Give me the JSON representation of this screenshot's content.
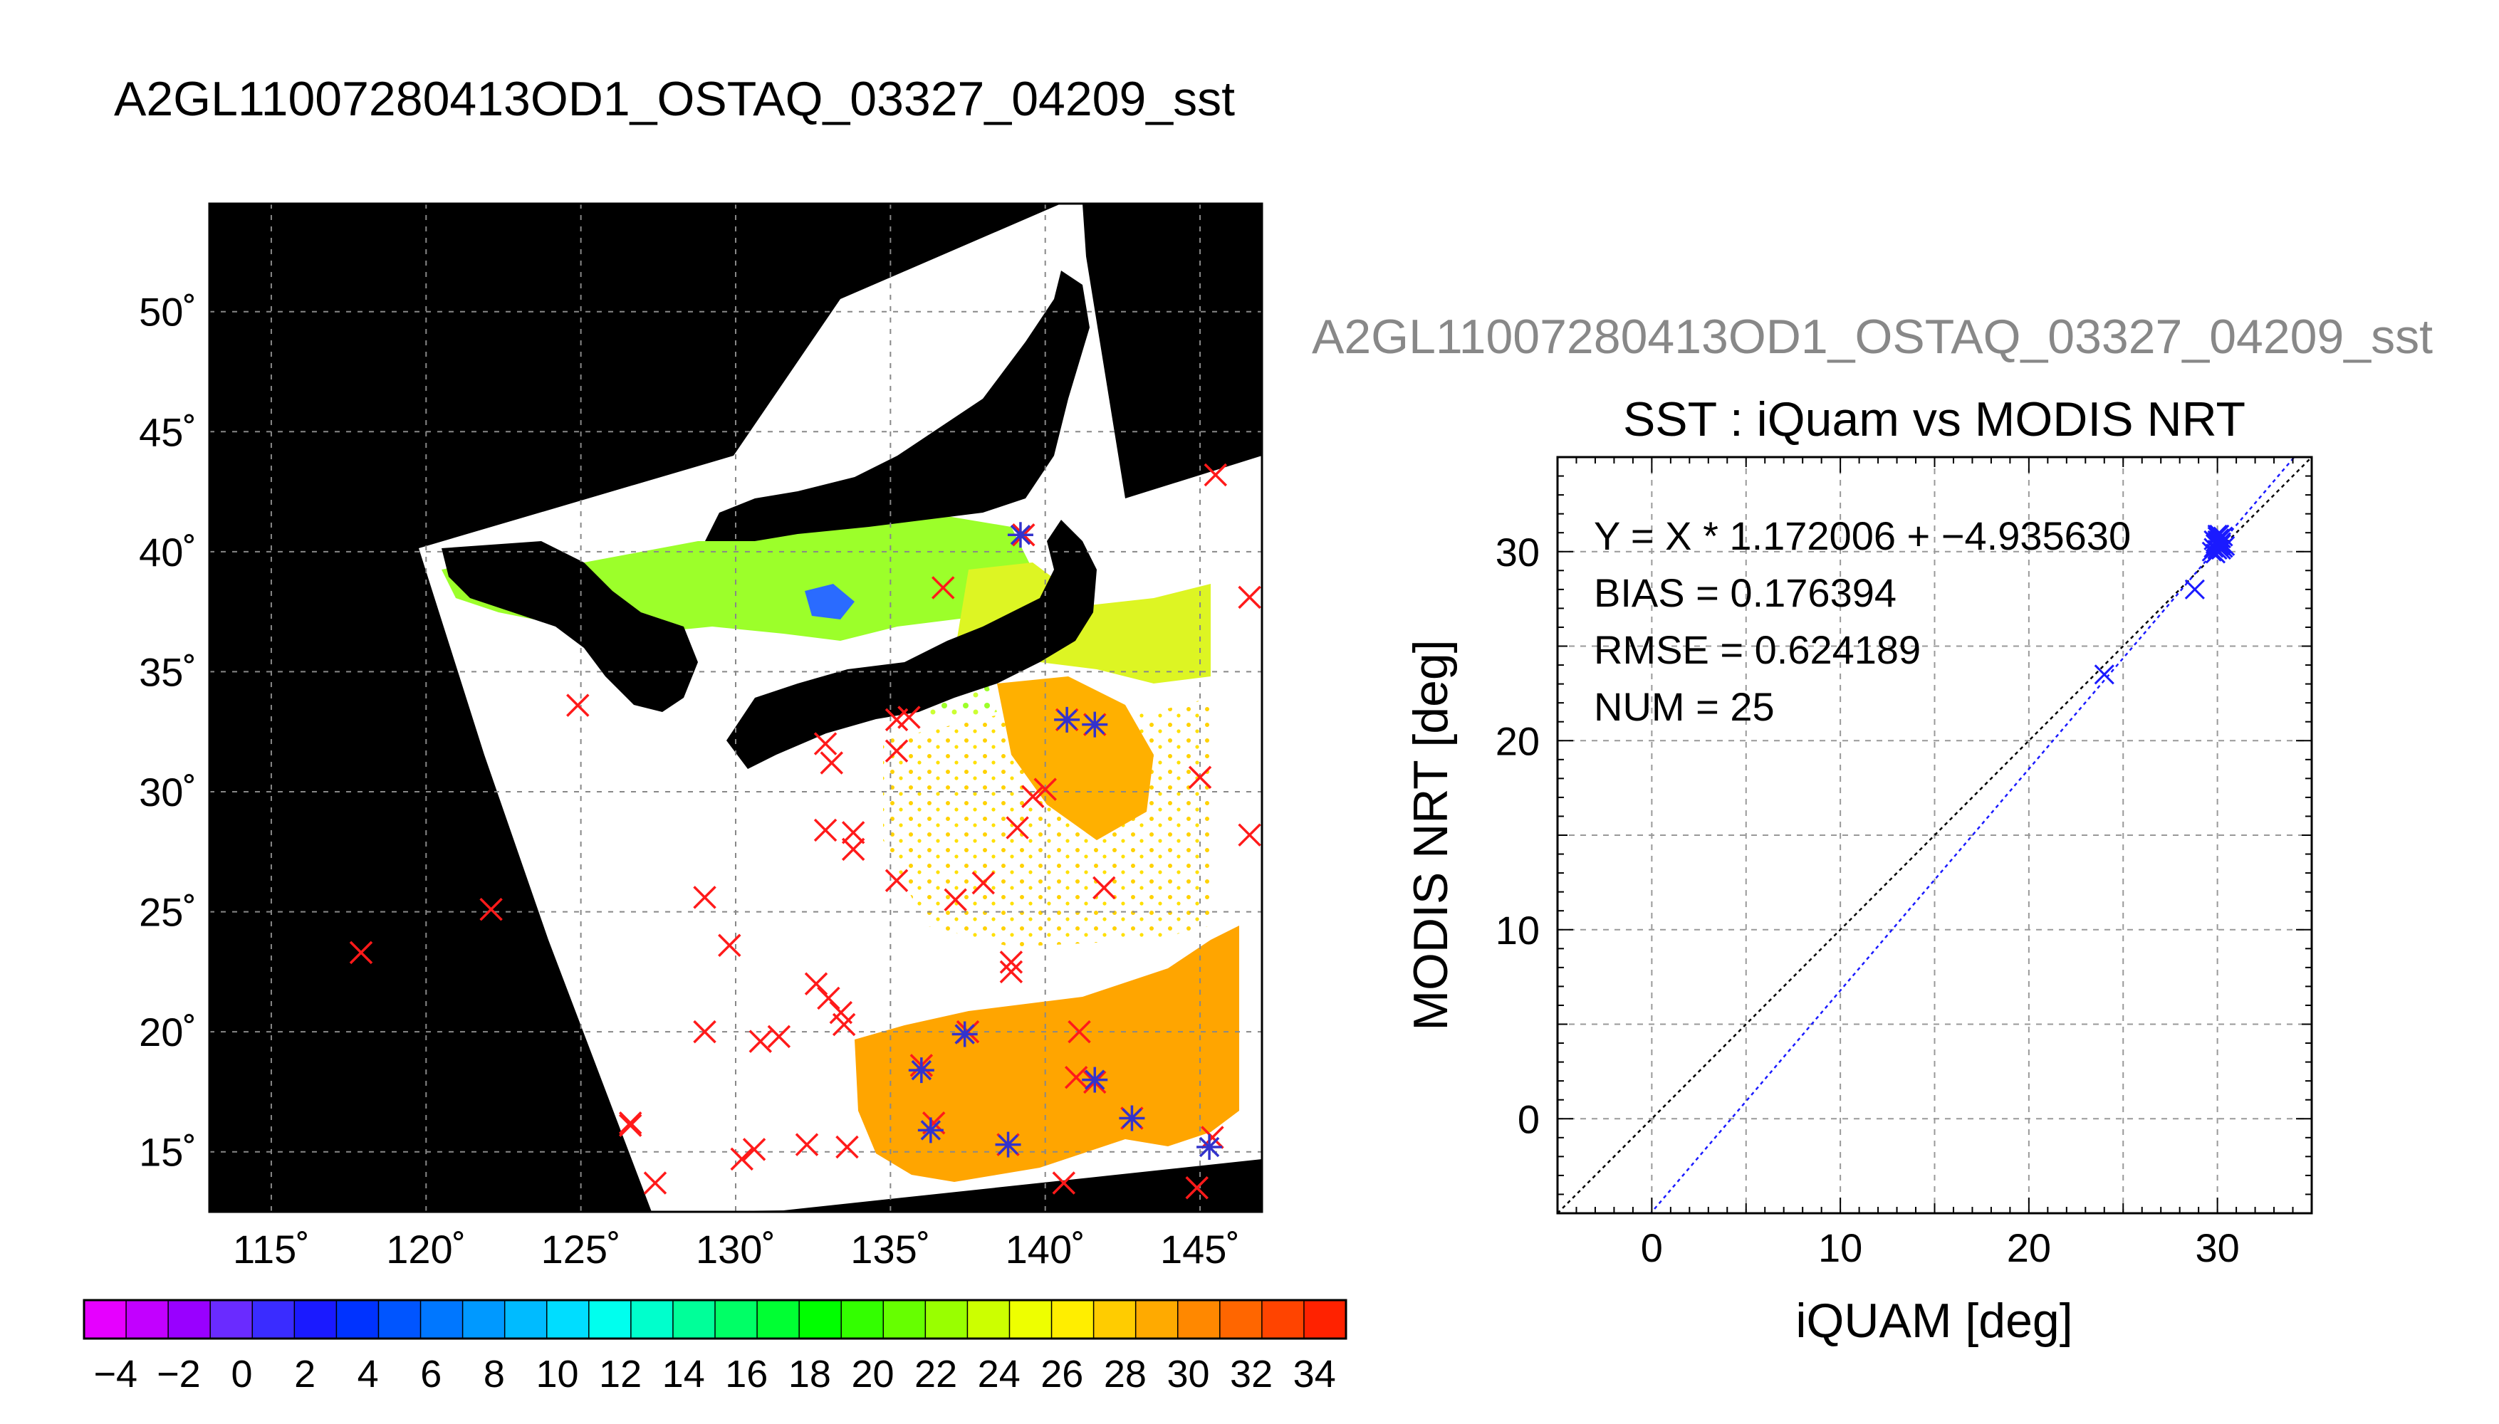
{
  "page_title": "A2GL11007280413OD1_OSTAQ_03327_04209_sst",
  "chart_data": [
    {
      "type": "map",
      "lon_range": [
        113,
        147
      ],
      "lat_range": [
        12.5,
        54.5
      ],
      "lon_ticks": [
        115,
        120,
        125,
        130,
        135,
        140,
        145
      ],
      "lat_ticks": [
        15,
        20,
        25,
        30,
        35,
        40,
        45,
        50
      ],
      "lon_tick_labels": [
        "115˚",
        "120˚",
        "125˚",
        "130˚",
        "135˚",
        "140˚",
        "145˚"
      ],
      "lat_tick_labels": [
        "15˚",
        "20˚",
        "25˚",
        "30˚",
        "35˚",
        "40˚",
        "45˚",
        "50˚"
      ],
      "grid": true,
      "colorbar": {
        "min": -5,
        "max": 35,
        "labels": [
          "−4",
          "−2",
          "0",
          "2",
          "4",
          "6",
          "8",
          "10",
          "12",
          "14",
          "16",
          "18",
          "20",
          "22",
          "24",
          "26",
          "28",
          "30",
          "32",
          "34"
        ],
        "label_values": [
          -4,
          -2,
          0,
          2,
          4,
          6,
          8,
          10,
          12,
          14,
          16,
          18,
          20,
          22,
          24,
          26,
          28,
          30,
          32,
          34
        ],
        "colors": [
          "#e600ff",
          "#c200ff",
          "#9900ff",
          "#6a2bff",
          "#3a2cff",
          "#1a1aff",
          "#0033ff",
          "#0055ff",
          "#0077ff",
          "#0099ff",
          "#00bbff",
          "#00ddff",
          "#00ffee",
          "#00ffcc",
          "#00ff99",
          "#00ff66",
          "#00ff33",
          "#00ff00",
          "#33ff00",
          "#66ff00",
          "#99ff00",
          "#ccff00",
          "#eeff00",
          "#ffee00",
          "#ffcc00",
          "#ffaa00",
          "#ff8800",
          "#ff6600",
          "#ff4400",
          "#ff2200"
        ]
      },
      "red_markers": [
        [
          117.9,
          23.3
        ],
        [
          122.1,
          25.1
        ],
        [
          124.9,
          33.6
        ],
        [
          126.6,
          16.2
        ],
        [
          126.6,
          16.1
        ],
        [
          127.4,
          13.7
        ],
        [
          129,
          25.6
        ],
        [
          129,
          20
        ],
        [
          129.8,
          23.6
        ],
        [
          130.2,
          14.7
        ],
        [
          130.6,
          15.1
        ],
        [
          130.8,
          19.6
        ],
        [
          131.4,
          19.8
        ],
        [
          132.3,
          15.3
        ],
        [
          132.6,
          22
        ],
        [
          132.9,
          32
        ],
        [
          133,
          21.4
        ],
        [
          133.1,
          31.2
        ],
        [
          133.6,
          15.2
        ],
        [
          132.9,
          28.4
        ],
        [
          133.8,
          27.6
        ],
        [
          133.4,
          20.8
        ],
        [
          133.5,
          20.3
        ],
        [
          133.8,
          28.3
        ],
        [
          135.2,
          33
        ],
        [
          135.2,
          31.7
        ],
        [
          135.2,
          26.3
        ],
        [
          135.6,
          33.1
        ],
        [
          136,
          18.6
        ],
        [
          136.4,
          16.2
        ],
        [
          136.7,
          38.5
        ],
        [
          137.1,
          25.5
        ],
        [
          137.5,
          20
        ],
        [
          138,
          26.2
        ],
        [
          138.9,
          22.9
        ],
        [
          138.9,
          22.5
        ],
        [
          138.8,
          15.3
        ],
        [
          139.1,
          28.5
        ],
        [
          139.6,
          29.8
        ],
        [
          140,
          30.1
        ],
        [
          140.6,
          13.7
        ],
        [
          141.1,
          20
        ],
        [
          141,
          18.1
        ],
        [
          141.6,
          17.9
        ],
        [
          141.9,
          26
        ],
        [
          142.8,
          16.4
        ],
        [
          144.9,
          13.5
        ],
        [
          145,
          30.6
        ],
        [
          145.4,
          15.6
        ],
        [
          145.5,
          43.2
        ],
        [
          146.6,
          38.1
        ],
        [
          146.6,
          28.2
        ],
        [
          139.3,
          40.7
        ],
        [
          140.7,
          33
        ],
        [
          141.6,
          32.8
        ]
      ],
      "blue_markers": [
        [
          136,
          18.4
        ],
        [
          136.3,
          15.9
        ],
        [
          137.4,
          19.9
        ],
        [
          138.8,
          15.3
        ],
        [
          139.2,
          40.7
        ],
        [
          140.7,
          33
        ],
        [
          141.6,
          32.8
        ],
        [
          141.6,
          18
        ],
        [
          142.8,
          16.4
        ],
        [
          145.3,
          15.2
        ]
      ]
    },
    {
      "type": "scatter",
      "suptitle": "A2GL11007280413OD1_OSTAQ_03327_04209_sst",
      "title": "SST : iQuam vs MODIS NRT",
      "xlabel": "iQUAM [deg]",
      "ylabel": "MODIS NRT [deg]",
      "xlim": [
        -5,
        35
      ],
      "ylim": [
        -5,
        35
      ],
      "x_ticks": [
        0,
        10,
        20,
        30
      ],
      "y_ticks": [
        0,
        10,
        20,
        30
      ],
      "grid_step": 5,
      "grid": true,
      "annotations": [
        "Y = X * 1.172006 + −4.935630",
        "BIAS = 0.176394",
        "RMSE = 0.624189",
        "NUM = 25"
      ],
      "fit": {
        "slope": 1.172006,
        "intercept": -4.93563
      },
      "points": {
        "x": [
          24,
          28.8,
          29.7,
          29.8,
          29.9,
          30,
          30,
          30.1,
          30.1,
          30.2,
          30.2,
          30.3,
          30.3,
          30,
          30,
          30.1,
          29.8,
          29.9,
          30.2,
          30.4,
          30,
          30.1,
          30,
          29.9,
          30.2
        ],
        "y": [
          23.5,
          28,
          30,
          30.2,
          30.4,
          30.6,
          30.9,
          30.3,
          30.7,
          30.1,
          30.5,
          30.2,
          30.8,
          30.3,
          30.5,
          30.9,
          30.6,
          29.9,
          30.4,
          30.3,
          30.1,
          30.6,
          30.8,
          30.5,
          30.7
        ]
      }
    }
  ]
}
